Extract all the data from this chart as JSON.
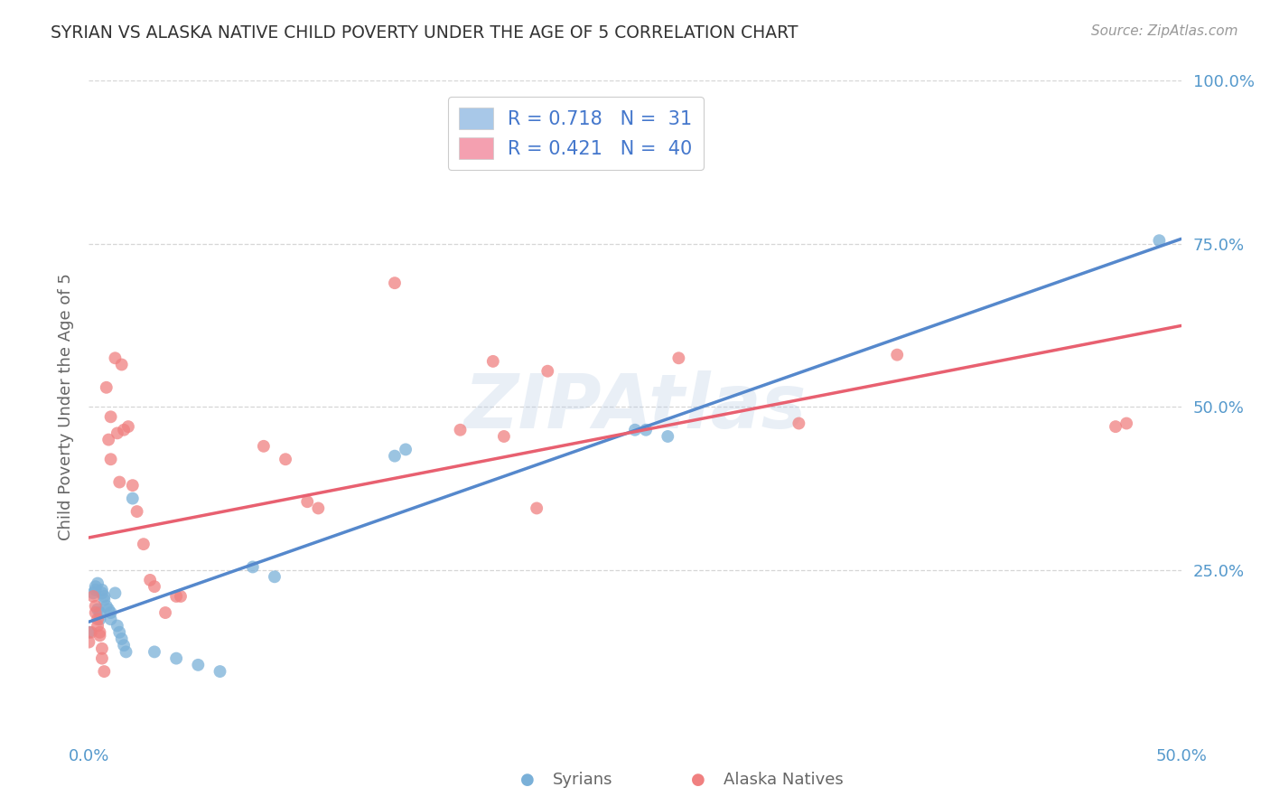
{
  "title": "SYRIAN VS ALASKA NATIVE CHILD POVERTY UNDER THE AGE OF 5 CORRELATION CHART",
  "source": "Source: ZipAtlas.com",
  "ylabel": "Child Poverty Under the Age of 5",
  "xlim": [
    0.0,
    0.5
  ],
  "ylim": [
    0.0,
    1.0
  ],
  "scatter_syrians": [
    [
      0.0,
      0.155
    ],
    [
      0.002,
      0.215
    ],
    [
      0.003,
      0.22
    ],
    [
      0.003,
      0.225
    ],
    [
      0.004,
      0.23
    ],
    [
      0.004,
      0.19
    ],
    [
      0.005,
      0.175
    ],
    [
      0.005,
      0.185
    ],
    [
      0.006,
      0.22
    ],
    [
      0.006,
      0.215
    ],
    [
      0.007,
      0.21
    ],
    [
      0.007,
      0.205
    ],
    [
      0.008,
      0.195
    ],
    [
      0.009,
      0.19
    ],
    [
      0.01,
      0.185
    ],
    [
      0.01,
      0.175
    ],
    [
      0.012,
      0.215
    ],
    [
      0.013,
      0.165
    ],
    [
      0.014,
      0.155
    ],
    [
      0.015,
      0.145
    ],
    [
      0.016,
      0.135
    ],
    [
      0.017,
      0.125
    ],
    [
      0.02,
      0.36
    ],
    [
      0.03,
      0.125
    ],
    [
      0.04,
      0.115
    ],
    [
      0.05,
      0.105
    ],
    [
      0.06,
      0.095
    ],
    [
      0.075,
      0.255
    ],
    [
      0.085,
      0.24
    ],
    [
      0.14,
      0.425
    ],
    [
      0.145,
      0.435
    ],
    [
      0.25,
      0.465
    ],
    [
      0.255,
      0.465
    ],
    [
      0.265,
      0.455
    ],
    [
      0.49,
      0.755
    ]
  ],
  "scatter_alaska": [
    [
      0.0,
      0.14
    ],
    [
      0.001,
      0.155
    ],
    [
      0.002,
      0.21
    ],
    [
      0.003,
      0.195
    ],
    [
      0.003,
      0.185
    ],
    [
      0.004,
      0.175
    ],
    [
      0.004,
      0.165
    ],
    [
      0.005,
      0.155
    ],
    [
      0.005,
      0.15
    ],
    [
      0.006,
      0.13
    ],
    [
      0.006,
      0.115
    ],
    [
      0.007,
      0.095
    ],
    [
      0.008,
      0.53
    ],
    [
      0.009,
      0.45
    ],
    [
      0.01,
      0.485
    ],
    [
      0.01,
      0.42
    ],
    [
      0.012,
      0.575
    ],
    [
      0.013,
      0.46
    ],
    [
      0.014,
      0.385
    ],
    [
      0.015,
      0.565
    ],
    [
      0.016,
      0.465
    ],
    [
      0.018,
      0.47
    ],
    [
      0.02,
      0.38
    ],
    [
      0.022,
      0.34
    ],
    [
      0.025,
      0.29
    ],
    [
      0.028,
      0.235
    ],
    [
      0.03,
      0.225
    ],
    [
      0.035,
      0.185
    ],
    [
      0.04,
      0.21
    ],
    [
      0.042,
      0.21
    ],
    [
      0.08,
      0.44
    ],
    [
      0.09,
      0.42
    ],
    [
      0.1,
      0.355
    ],
    [
      0.105,
      0.345
    ],
    [
      0.14,
      0.69
    ],
    [
      0.17,
      0.465
    ],
    [
      0.185,
      0.57
    ],
    [
      0.19,
      0.455
    ],
    [
      0.205,
      0.345
    ],
    [
      0.21,
      0.555
    ],
    [
      0.27,
      0.575
    ],
    [
      0.325,
      0.475
    ],
    [
      0.37,
      0.58
    ],
    [
      0.475,
      0.475
    ],
    [
      0.47,
      0.47
    ]
  ],
  "watermark": "ZIPAtlas",
  "syrian_color": "#a8c8e8",
  "alaska_color": "#f4a0b0",
  "syrian_scatter_color": "#7ab0d8",
  "alaska_scatter_color": "#f08080",
  "syrian_line_color": "#5588cc",
  "alaska_line_color": "#e86070",
  "R_syrian": 0.718,
  "N_syrian": 31,
  "R_alaska": 0.421,
  "N_alaska": 40,
  "background_color": "#ffffff",
  "grid_color": "#cccccc",
  "title_color": "#333333",
  "axis_label_color": "#666666",
  "tick_color": "#5599cc",
  "right_tick_color": "#5599cc"
}
